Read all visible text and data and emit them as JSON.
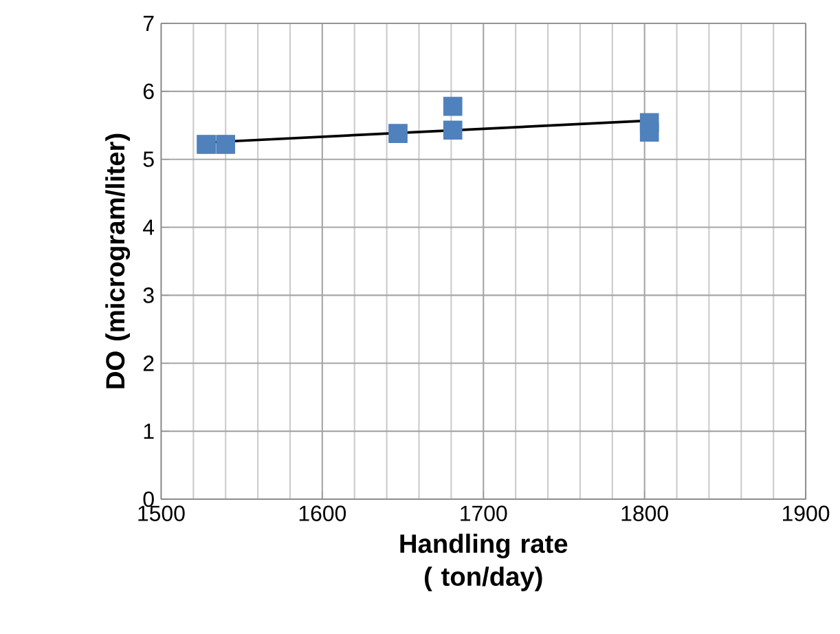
{
  "chart_data": {
    "type": "scatter",
    "xlabel": "Handling rate ( ton/day)",
    "ylabel": "DO (microgram/liter)",
    "marker": "square",
    "grid": true,
    "xlim": [
      1500,
      1900
    ],
    "ylim": [
      0,
      7
    ],
    "xticks": [
      1500,
      1600,
      1700,
      1800,
      1900
    ],
    "yticks": [
      0,
      1,
      2,
      3,
      4,
      5,
      6,
      7
    ],
    "series": [
      {
        "color": "#4f81bd",
        "x": [
          1528,
          1540,
          1647,
          1681,
          1681,
          1803,
          1803
        ],
        "values": [
          5.22,
          5.22,
          5.38,
          5.43,
          5.78,
          5.4,
          5.54
        ]
      },
      {
        "type": "line",
        "color": "#000000",
        "marker": "none",
        "line_style": "solid",
        "x": [
          1530,
          1803
        ],
        "values": [
          5.25,
          5.57
        ]
      }
    ]
  }
}
